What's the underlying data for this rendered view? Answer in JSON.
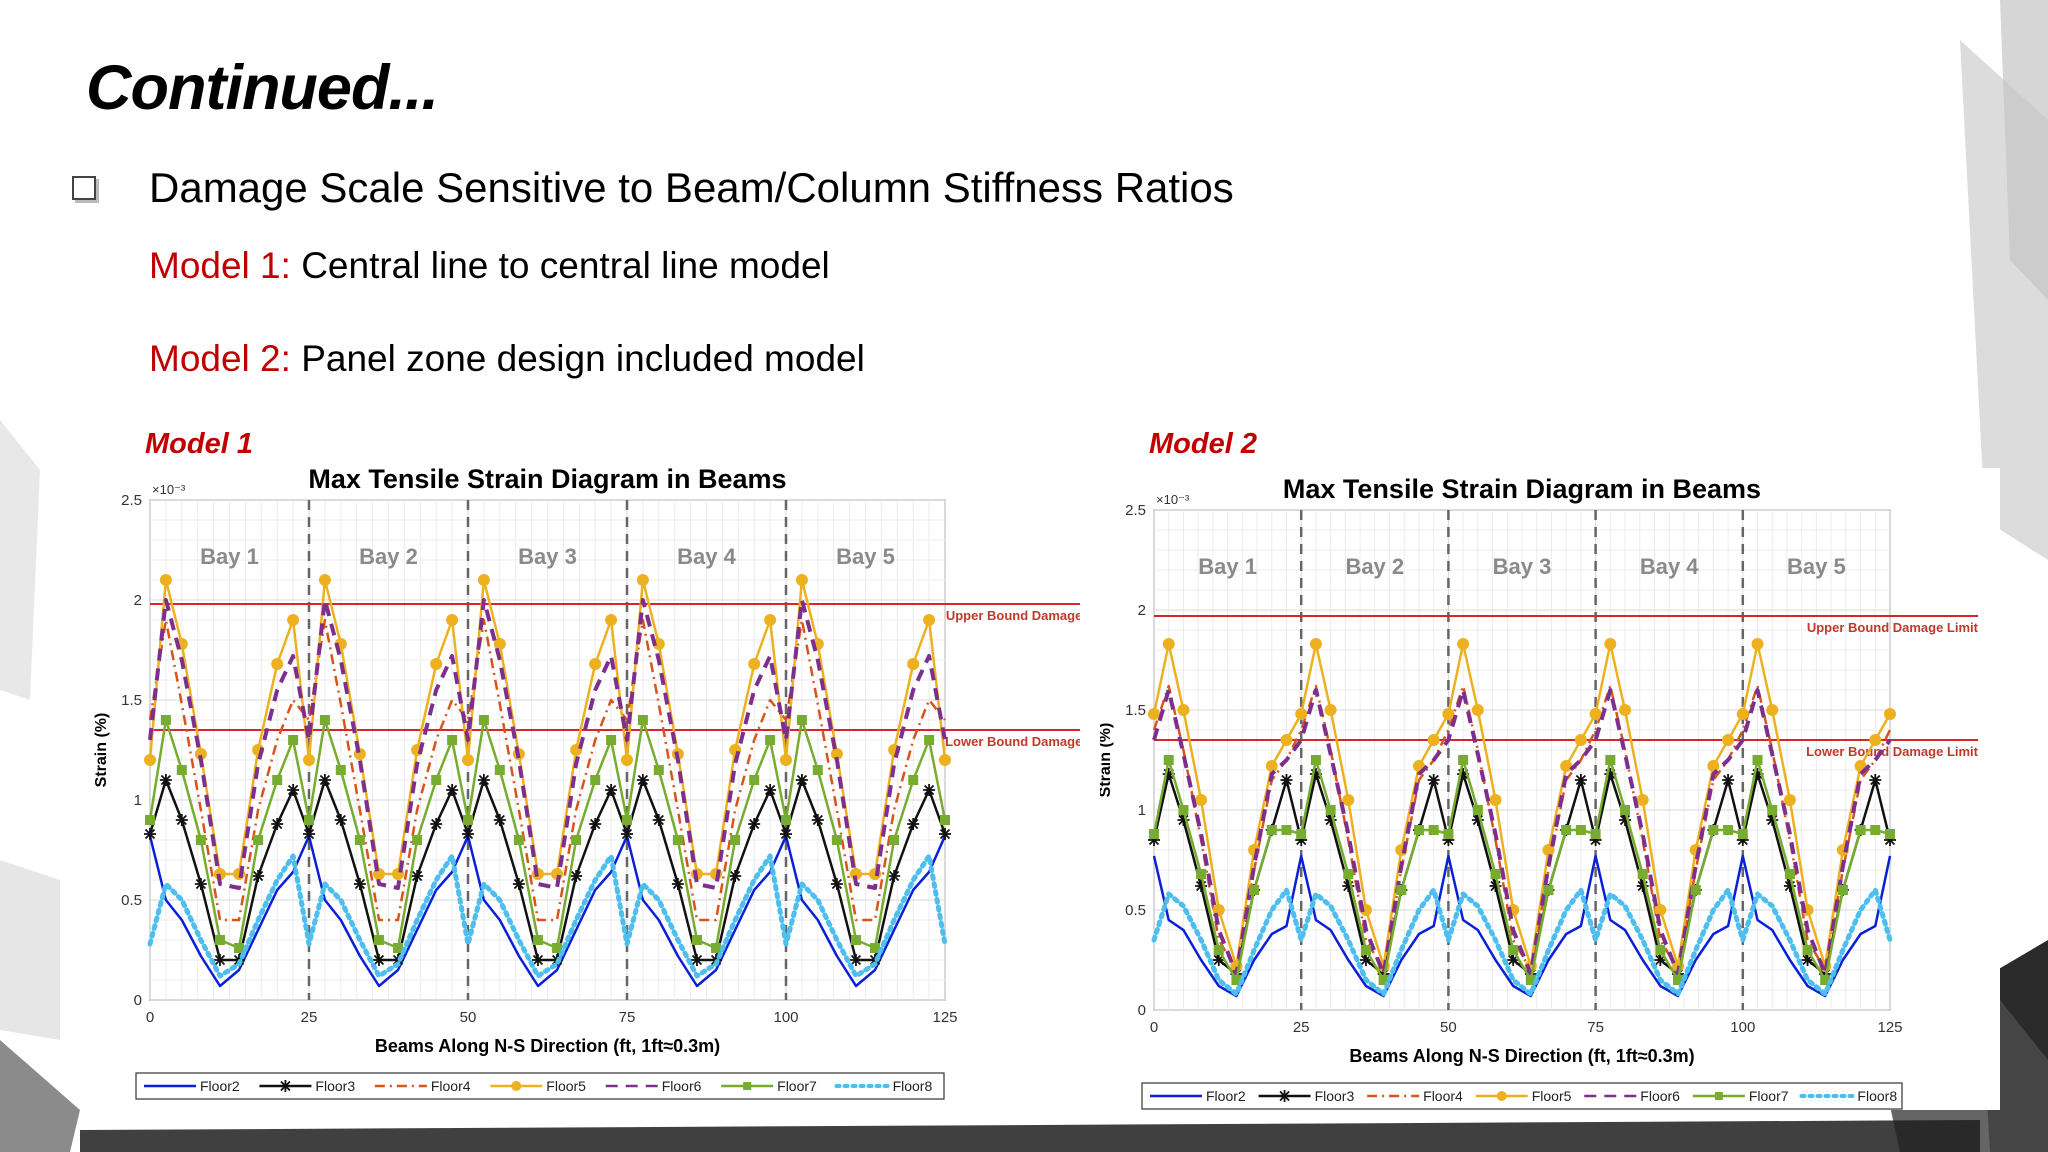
{
  "slide": {
    "title": "Continued...",
    "bullet": "Damage Scale Sensitive to Beam/Column Stiffness Ratios",
    "models": [
      {
        "prefix": "Model 1:",
        "text": " Central line to central line model"
      },
      {
        "prefix": "Model 2:",
        "text": " Panel zone design included model"
      }
    ]
  },
  "colors": {
    "accent_red": "#c00000",
    "limit_line": "#d62728"
  },
  "chart_data": [
    {
      "type": "line",
      "label": "Model 1",
      "title": "Max Tensile Strain Diagram in Beams",
      "xlabel": "Beams Along N-S Direction (ft, 1ft≈0.3m)",
      "ylabel": "Strain (%)",
      "exponent": "×10⁻³",
      "xlim": [
        0,
        125
      ],
      "ylim": [
        0,
        0.0025
      ],
      "xticks": [
        "0",
        "25",
        "50",
        "75",
        "100",
        "125"
      ],
      "yticks": [
        "0",
        "0.5",
        "1",
        "1.5",
        "2",
        "2.5"
      ],
      "grid": true,
      "legend_position": "bottom",
      "bays": [
        "Bay 1",
        "Bay 2",
        "Bay 3",
        "Bay 4",
        "Bay 5"
      ],
      "bay_lines": [
        25,
        50,
        75,
        100
      ],
      "limits": [
        {
          "label": "Upper Bound Damage Limit",
          "value": 0.00198
        },
        {
          "label": "Lower Bound Damage Limit",
          "value": 0.00135
        }
      ],
      "profile_x": [
        0,
        2.5,
        5,
        8,
        11,
        14,
        17,
        20,
        22.5
      ],
      "series": [
        {
          "name": "Floor2",
          "color": "#0a1fd6",
          "style": "solid",
          "marker": "none",
          "values": [
            0.00082,
            0.0005,
            0.0004,
            0.00022,
            7e-05,
            0.00015,
            0.00035,
            0.00055,
            0.00064
          ]
        },
        {
          "name": "Floor3",
          "color": "#111111",
          "style": "solid",
          "marker": "star",
          "values": [
            0.00083,
            0.0011,
            0.0009,
            0.00058,
            0.0002,
            0.0002,
            0.00062,
            0.00088,
            0.00105
          ]
        },
        {
          "name": "Floor4",
          "color": "#d9541a",
          "style": "dashdot",
          "marker": "none",
          "values": [
            0.0014,
            0.0019,
            0.00148,
            0.00095,
            0.0004,
            0.0004,
            0.00095,
            0.0013,
            0.0015
          ]
        },
        {
          "name": "Floor5",
          "color": "#edb120",
          "style": "solid",
          "marker": "circle",
          "values": [
            0.0012,
            0.0021,
            0.00178,
            0.00123,
            0.00063,
            0.00063,
            0.00125,
            0.00168,
            0.0019
          ]
        },
        {
          "name": "Floor6",
          "color": "#7e2f8e",
          "style": "dash",
          "marker": "none",
          "values": [
            0.0013,
            0.002,
            0.0017,
            0.0012,
            0.00058,
            0.00056,
            0.00118,
            0.00155,
            0.00172
          ]
        },
        {
          "name": "Floor7",
          "color": "#77ac30",
          "style": "solid",
          "marker": "square",
          "values": [
            0.0009,
            0.0014,
            0.00115,
            0.0008,
            0.0003,
            0.00026,
            0.0008,
            0.0011,
            0.0013
          ]
        },
        {
          "name": "Floor8",
          "color": "#4dbeee",
          "style": "dot",
          "marker": "none",
          "values": [
            0.00028,
            0.00058,
            0.0005,
            0.0003,
            0.00012,
            0.00018,
            0.0004,
            0.0006,
            0.00072
          ]
        }
      ]
    },
    {
      "type": "line",
      "label": "Model 2",
      "title": "Max Tensile Strain Diagram in Beams",
      "xlabel": "Beams Along N-S Direction (ft, 1ft≈0.3m)",
      "ylabel": "Strain (%)",
      "exponent": "×10⁻³",
      "xlim": [
        0,
        125
      ],
      "ylim": [
        0,
        0.0025
      ],
      "xticks": [
        "0",
        "25",
        "50",
        "75",
        "100",
        "125"
      ],
      "yticks": [
        "0",
        "0.5",
        "1",
        "1.5",
        "2",
        "2.5"
      ],
      "grid": true,
      "legend_position": "bottom",
      "bays": [
        "Bay 1",
        "Bay 2",
        "Bay 3",
        "Bay 4",
        "Bay 5"
      ],
      "bay_lines": [
        25,
        50,
        75,
        100
      ],
      "limits": [
        {
          "label": "Upper Bound Damage Limit",
          "value": 0.00197
        },
        {
          "label": "Lower Bound Damage Limit",
          "value": 0.00135
        }
      ],
      "profile_x": [
        0,
        2.5,
        5,
        8,
        11,
        14,
        17,
        20,
        22.5
      ],
      "series": [
        {
          "name": "Floor2",
          "color": "#0a1fd6",
          "style": "solid",
          "marker": "none",
          "values": [
            0.00077,
            0.00045,
            0.0004,
            0.00025,
            0.00012,
            7e-05,
            0.00025,
            0.00038,
            0.00042
          ]
        },
        {
          "name": "Floor3",
          "color": "#111111",
          "style": "solid",
          "marker": "star",
          "values": [
            0.00085,
            0.00118,
            0.00095,
            0.00062,
            0.00025,
            0.00018,
            0.0006,
            0.0009,
            0.00115
          ]
        },
        {
          "name": "Floor4",
          "color": "#d9541a",
          "style": "dashdot",
          "marker": "none",
          "values": [
            0.0014,
            0.00162,
            0.0013,
            0.00085,
            0.00035,
            0.0002,
            0.0007,
            0.00115,
            0.00125
          ]
        },
        {
          "name": "Floor5",
          "color": "#edb120",
          "style": "solid",
          "marker": "circle",
          "values": [
            0.00148,
            0.00183,
            0.0015,
            0.00105,
            0.0005,
            0.00022,
            0.0008,
            0.00122,
            0.00135
          ]
        },
        {
          "name": "Floor6",
          "color": "#7e2f8e",
          "style": "dash",
          "marker": "none",
          "values": [
            0.00135,
            0.0016,
            0.00128,
            0.00088,
            0.0004,
            0.00018,
            0.00072,
            0.00118,
            0.00125
          ]
        },
        {
          "name": "Floor7",
          "color": "#77ac30",
          "style": "solid",
          "marker": "square",
          "values": [
            0.00088,
            0.00125,
            0.001,
            0.00068,
            0.0003,
            0.00015,
            0.0006,
            0.0009,
            0.0009
          ]
        },
        {
          "name": "Floor8",
          "color": "#4dbeee",
          "style": "dot",
          "marker": "none",
          "values": [
            0.00035,
            0.00058,
            0.00052,
            0.00035,
            0.00015,
            8e-05,
            0.0003,
            0.0005,
            0.0006
          ]
        }
      ]
    }
  ]
}
